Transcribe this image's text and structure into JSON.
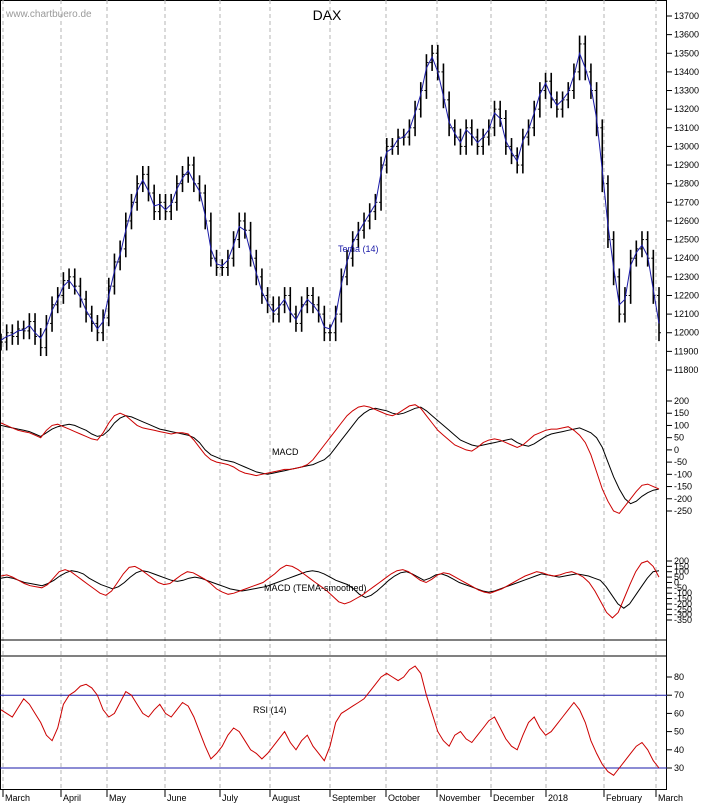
{
  "title": "DAX",
  "watermark": "www.chartbuero.de",
  "months": [
    "March",
    "April",
    "May",
    "June",
    "July",
    "August",
    "September",
    "October",
    "November",
    "December",
    "2018",
    "February",
    "March"
  ],
  "colors": {
    "price": "#000000",
    "tema": "#1a1aa8",
    "signal": "#cc0000",
    "rsi": "#cc0000",
    "rsi_levels": "#1a1aa8",
    "grid": "#b4b4b4"
  },
  "chart_data": [
    {
      "type": "line",
      "panel": "price",
      "title": "DAX",
      "y_ticks": [
        13700,
        13600,
        13500,
        13400,
        13300,
        13200,
        13100,
        13000,
        12900,
        12800,
        12700,
        12600,
        12500,
        12400,
        12300,
        12200,
        12100,
        12000,
        11900,
        11800
      ],
      "ylim": [
        11750,
        13760
      ],
      "annotation": "Tema (14)",
      "series": [
        {
          "name": "DAX",
          "style": "bars",
          "values": [
            11950,
            12000,
            11980,
            12020,
            12010,
            12060,
            11980,
            11920,
            12050,
            12150,
            12200,
            12280,
            12300,
            12250,
            12180,
            12100,
            12050,
            12000,
            12080,
            12250,
            12380,
            12450,
            12600,
            12700,
            12800,
            12850,
            12750,
            12650,
            12700,
            12650,
            12700,
            12800,
            12850,
            12900,
            12800,
            12750,
            12600,
            12400,
            12350,
            12350,
            12400,
            12500,
            12600,
            12550,
            12400,
            12300,
            12200,
            12150,
            12100,
            12150,
            12200,
            12100,
            12050,
            12150,
            12200,
            12150,
            12100,
            12000,
            12000,
            12100,
            12300,
            12400,
            12500,
            12550,
            12600,
            12650,
            12700,
            12900,
            13000,
            13000,
            13050,
            13050,
            13100,
            13200,
            13300,
            13450,
            13500,
            13400,
            13250,
            13100,
            13050,
            13000,
            13100,
            13050,
            13000,
            13050,
            13100,
            13200,
            13150,
            13000,
            12950,
            12900,
            13050,
            13100,
            13200,
            13300,
            13350,
            13250,
            13200,
            13250,
            13300,
            13400,
            13550,
            13400,
            13300,
            13100,
            12800,
            12500,
            12300,
            12100,
            12200,
            12400,
            12450,
            12500,
            12400,
            12200,
            12000
          ]
        },
        {
          "name": "Tema (14)",
          "style": "line",
          "values": [
            11960,
            11980,
            11990,
            12010,
            12015,
            12040,
            12000,
            11970,
            12030,
            12120,
            12180,
            12250,
            12280,
            12240,
            12190,
            12120,
            12070,
            12020,
            12060,
            12200,
            12330,
            12420,
            12550,
            12660,
            12760,
            12820,
            12760,
            12680,
            12690,
            12660,
            12690,
            12770,
            12830,
            12870,
            12810,
            12760,
            12630,
            12450,
            12370,
            12360,
            12390,
            12470,
            12570,
            12550,
            12430,
            12320,
            12220,
            12160,
            12110,
            12140,
            12180,
            12110,
            12070,
            12130,
            12180,
            12150,
            12110,
            12030,
            12020,
            12090,
            12260,
            12380,
            12480,
            12540,
            12590,
            12640,
            12690,
            12860,
            12970,
            12990,
            13040,
            13050,
            13090,
            13180,
            13280,
            13420,
            13480,
            13400,
            13270,
            13130,
            13070,
            13020,
            13090,
            13060,
            13020,
            13050,
            13090,
            13180,
            13150,
            13030,
            12970,
            12920,
            13030,
            13090,
            13180,
            13280,
            13340,
            13270,
            13220,
            13250,
            13290,
            13380,
            13500,
            13420,
            13320,
            13150,
            12870,
            12580,
            12350,
            12150,
            12180,
            12360,
            12430,
            12470,
            12410,
            12230,
            12050
          ]
        }
      ]
    },
    {
      "type": "line",
      "panel": "macd",
      "label": "MACD",
      "y_ticks": [
        200,
        150,
        100,
        50,
        0,
        -50,
        -100,
        -150,
        -200,
        -250
      ],
      "ylim": [
        -280,
        230
      ],
      "series": [
        {
          "name": "",
          "color": "black",
          "values": [
            100,
            95,
            90,
            85,
            80,
            75,
            65,
            55,
            70,
            85,
            95,
            100,
            105,
            100,
            90,
            80,
            65,
            55,
            60,
            80,
            110,
            130,
            140,
            135,
            125,
            115,
            105,
            95,
            85,
            80,
            75,
            70,
            65,
            60,
            50,
            30,
            0,
            -20,
            -30,
            -40,
            -45,
            -50,
            -60,
            -70,
            -80,
            -90,
            -95,
            -100,
            -95,
            -90,
            -85,
            -80,
            -75,
            -70,
            -65,
            -60,
            -50,
            -40,
            -20,
            10,
            40,
            70,
            100,
            130,
            150,
            165,
            170,
            165,
            160,
            150,
            145,
            150,
            160,
            170,
            175,
            160,
            140,
            120,
            100,
            80,
            60,
            40,
            30,
            20,
            15,
            20,
            25,
            30,
            35,
            40,
            45,
            30,
            20,
            15,
            25,
            40,
            55,
            65,
            70,
            75,
            80,
            85,
            90,
            80,
            70,
            50,
            10,
            -50,
            -110,
            -160,
            -200,
            -220,
            -210,
            -190,
            -175,
            -165,
            -160
          ]
        },
        {
          "name": "",
          "color": "red",
          "values": [
            110,
            100,
            90,
            80,
            75,
            70,
            60,
            50,
            80,
            100,
            105,
            95,
            85,
            75,
            65,
            55,
            45,
            40,
            70,
            110,
            140,
            150,
            140,
            120,
            100,
            90,
            85,
            80,
            75,
            70,
            65,
            70,
            70,
            65,
            40,
            10,
            -20,
            -40,
            -50,
            -55,
            -60,
            -70,
            -85,
            -95,
            -100,
            -105,
            -100,
            -95,
            -90,
            -85,
            -80,
            -80,
            -75,
            -70,
            -60,
            -40,
            -10,
            20,
            50,
            80,
            110,
            140,
            160,
            175,
            180,
            175,
            165,
            155,
            145,
            140,
            150,
            165,
            180,
            185,
            170,
            140,
            110,
            80,
            60,
            40,
            20,
            10,
            0,
            -5,
            10,
            30,
            40,
            45,
            40,
            30,
            20,
            10,
            20,
            40,
            60,
            70,
            80,
            85,
            85,
            90,
            95,
            80,
            60,
            30,
            -20,
            -90,
            -160,
            -210,
            -250,
            -260,
            -230,
            -200,
            -170,
            -145,
            -140,
            -150,
            -160
          ]
        }
      ]
    },
    {
      "type": "line",
      "panel": "macd_tema",
      "label": "MACD (TEMA-smoothed)",
      "y_ticks": [
        200,
        150,
        100,
        50,
        0,
        -50,
        -100,
        -150,
        -200,
        -250,
        -300,
        -350
      ],
      "ylim": [
        -380,
        230
      ],
      "series": [
        {
          "name": "",
          "color": "black",
          "values": [
            40,
            50,
            40,
            20,
            0,
            -10,
            -20,
            -30,
            -10,
            20,
            60,
            90,
            110,
            100,
            80,
            40,
            10,
            -20,
            -40,
            -60,
            -40,
            0,
            50,
            90,
            110,
            100,
            80,
            60,
            40,
            20,
            10,
            20,
            40,
            50,
            40,
            20,
            0,
            -20,
            -40,
            -60,
            -70,
            -80,
            -70,
            -60,
            -50,
            -40,
            -20,
            0,
            20,
            40,
            60,
            80,
            100,
            110,
            100,
            80,
            50,
            20,
            0,
            -20,
            -60,
            -110,
            -140,
            -120,
            -80,
            -30,
            20,
            60,
            90,
            100,
            80,
            50,
            20,
            40,
            70,
            80,
            60,
            30,
            0,
            -20,
            -40,
            -60,
            -80,
            -90,
            -80,
            -60,
            -40,
            -20,
            0,
            20,
            40,
            60,
            80,
            70,
            60,
            50,
            60,
            70,
            80,
            70,
            60,
            40,
            20,
            -40,
            -120,
            -200,
            -240,
            -200,
            -120,
            -40,
            40,
            100,
            110
          ]
        },
        {
          "name": "",
          "color": "red",
          "values": [
            60,
            70,
            50,
            20,
            -10,
            -30,
            -40,
            -50,
            -20,
            40,
            100,
            120,
            100,
            60,
            20,
            -20,
            -60,
            -100,
            -120,
            -80,
            0,
            80,
            140,
            150,
            120,
            80,
            40,
            0,
            -20,
            -10,
            30,
            70,
            100,
            90,
            60,
            30,
            -10,
            -60,
            -90,
            -110,
            -100,
            -80,
            -60,
            -40,
            -20,
            0,
            40,
            80,
            130,
            160,
            150,
            120,
            80,
            40,
            0,
            -40,
            -80,
            -130,
            -180,
            -200,
            -180,
            -150,
            -120,
            -80,
            -40,
            0,
            40,
            80,
            110,
            120,
            100,
            60,
            20,
            0,
            30,
            70,
            90,
            80,
            50,
            20,
            -10,
            -40,
            -70,
            -90,
            -100,
            -80,
            -60,
            -30,
            0,
            30,
            60,
            80,
            100,
            90,
            70,
            60,
            70,
            90,
            100,
            80,
            50,
            0,
            -80,
            -180,
            -280,
            -330,
            -280,
            -150,
            -20,
            100,
            180,
            200,
            150,
            50
          ]
        }
      ]
    },
    {
      "type": "line",
      "panel": "rsi",
      "label": "RSI (14)",
      "y_ticks": [
        80,
        70,
        60,
        50,
        40,
        30
      ],
      "ylim": [
        25,
        87
      ],
      "levels": [
        70,
        30
      ],
      "series": [
        {
          "name": "",
          "values": [
            62,
            60,
            58,
            63,
            68,
            65,
            60,
            55,
            48,
            45,
            52,
            65,
            70,
            72,
            75,
            76,
            74,
            70,
            62,
            58,
            60,
            66,
            72,
            70,
            65,
            60,
            58,
            62,
            65,
            60,
            58,
            62,
            66,
            64,
            58,
            50,
            42,
            35,
            38,
            42,
            48,
            52,
            50,
            45,
            40,
            38,
            35,
            38,
            42,
            46,
            50,
            44,
            40,
            45,
            48,
            42,
            38,
            34,
            42,
            55,
            60,
            62,
            64,
            66,
            68,
            72,
            76,
            80,
            82,
            80,
            78,
            80,
            84,
            86,
            82,
            70,
            60,
            50,
            45,
            42,
            48,
            50,
            46,
            44,
            48,
            52,
            56,
            58,
            52,
            46,
            42,
            40,
            48,
            55,
            58,
            52,
            48,
            50,
            54,
            58,
            62,
            66,
            62,
            55,
            45,
            38,
            32,
            28,
            26,
            30,
            34,
            38,
            42,
            44,
            40,
            34,
            30
          ]
        }
      ]
    }
  ]
}
